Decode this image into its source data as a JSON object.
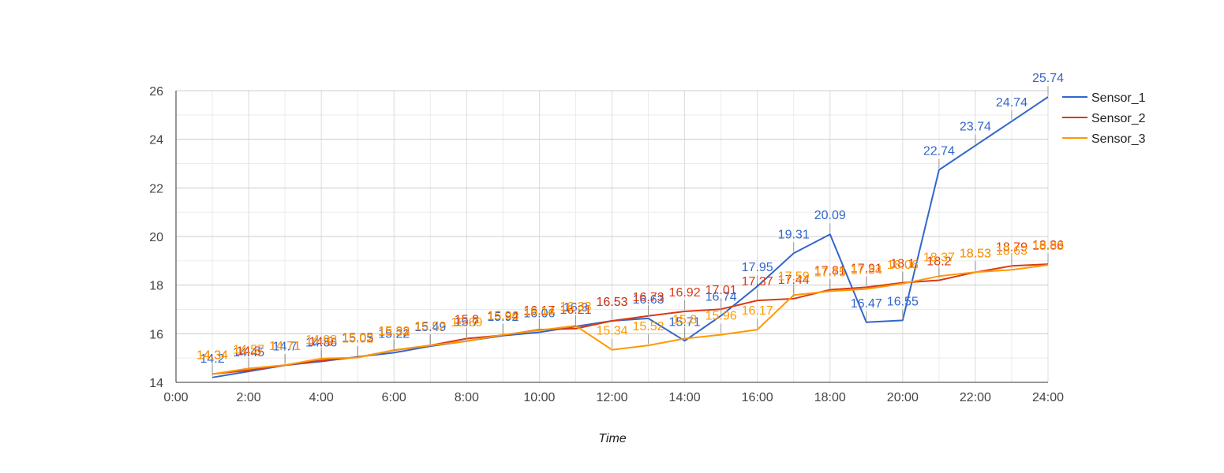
{
  "chart_data": {
    "type": "line",
    "title": "",
    "xlabel": "Time",
    "ylabel": "",
    "xlim": [
      0,
      24
    ],
    "ylim": [
      14,
      26
    ],
    "x_ticks": [
      "0:00",
      "2:00",
      "4:00",
      "6:00",
      "8:00",
      "10:00",
      "12:00",
      "14:00",
      "16:00",
      "18:00",
      "20:00",
      "22:00",
      "24:00"
    ],
    "y_ticks": [
      14,
      16,
      18,
      20,
      22,
      24,
      26
    ],
    "grid": true,
    "legend_position": "right",
    "x": [
      1,
      2,
      3,
      4,
      5,
      6,
      7,
      8,
      9,
      10,
      11,
      12,
      13,
      14,
      15,
      16,
      17,
      18,
      19,
      20,
      21,
      22,
      23,
      24
    ],
    "series": [
      {
        "name": "Sensor_1",
        "color": "#3366cc",
        "values": [
          14.2,
          14.45,
          14.7,
          14.86,
          15.05,
          15.22,
          15.49,
          15.7,
          15.92,
          16.06,
          16.3,
          16.53,
          16.63,
          15.71,
          16.74,
          17.95,
          19.31,
          20.09,
          16.47,
          16.55,
          22.74,
          23.74,
          24.74,
          25.74
        ],
        "labels": [
          "14.2",
          "14.45",
          "14.7",
          "14.86",
          "15.05",
          "15.22",
          "15.49",
          "15.7",
          "15.92",
          "16.06",
          "16.3",
          "16.53",
          "16.63",
          "15.71",
          "16.74",
          "17.95",
          "19.31",
          "20.09",
          "16.47",
          "16.55",
          "22.74",
          "23.74",
          "24.74",
          "25.74"
        ]
      },
      {
        "name": "Sensor_2",
        "color": "#dc3912",
        "values": [
          14.34,
          14.5,
          14.71,
          14.9,
          15.03,
          15.32,
          15.52,
          15.8,
          15.94,
          16.17,
          16.21,
          16.53,
          16.73,
          16.92,
          17.01,
          17.37,
          17.44,
          17.81,
          17.91,
          18.1,
          18.2,
          18.53,
          18.79,
          18.86
        ],
        "labels": [
          "14.34",
          "14.5",
          "14.71",
          "14.9",
          "15.03",
          "15.32",
          "15.52",
          "15.8",
          "15.94",
          "16.17",
          "16.21",
          "16.53",
          "16.73",
          "16.92",
          "17.01",
          "17.37",
          "17.44",
          "17.81",
          "17.91",
          "18.1",
          "18.2",
          "18.53",
          "18.79",
          "18.86"
        ]
      },
      {
        "name": "Sensor_3",
        "color": "#ff9900",
        "values": [
          14.34,
          14.57,
          14.71,
          14.98,
          15.02,
          15.33,
          15.52,
          15.69,
          15.96,
          16.14,
          16.33,
          15.34,
          15.52,
          15.8,
          15.96,
          16.17,
          17.59,
          17.75,
          17.84,
          18.06,
          18.37,
          18.53,
          18.63,
          18.83
        ],
        "labels": [
          "14.34",
          "14.57",
          "14.71",
          "14.98",
          "15.02",
          "15.33",
          "15.52",
          "15.69",
          "15.96",
          "16.14",
          "16.33",
          "15.34",
          "15.52",
          "15.8",
          "15.96",
          "16.17",
          "17.59",
          "17.75",
          "17.84",
          "18.06",
          "18.37",
          "18.53",
          "18.63",
          "18.83"
        ]
      }
    ]
  }
}
